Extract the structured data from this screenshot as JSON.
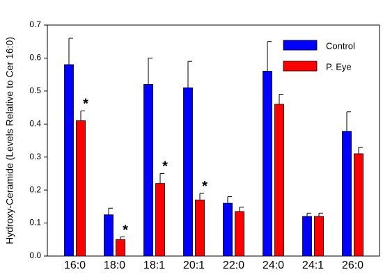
{
  "chart_data": {
    "type": "bar",
    "y_label": "Hydroxy-Ceramide (Levels Relative to Cer 16:0)",
    "categories": [
      "16:0",
      "18:0",
      "18:1",
      "20:1",
      "22:0",
      "24:0",
      "24:1",
      "26:0"
    ],
    "series": [
      {
        "name": "Control",
        "color": "#0000ff",
        "values": [
          0.58,
          0.125,
          0.52,
          0.51,
          0.16,
          0.56,
          0.12,
          0.378
        ],
        "errors": [
          0.08,
          0.02,
          0.08,
          0.08,
          0.02,
          0.09,
          0.01,
          0.059
        ]
      },
      {
        "name": "P. Eye",
        "color": "#ff0000",
        "values": [
          0.41,
          0.05,
          0.22,
          0.17,
          0.135,
          0.46,
          0.12,
          0.31
        ],
        "errors": [
          0.03,
          0.008,
          0.03,
          0.02,
          0.013,
          0.03,
          0.01,
          0.02
        ],
        "annotations": [
          "*",
          "*",
          "*",
          "*",
          null,
          null,
          null,
          null
        ]
      }
    ],
    "ylim": [
      0,
      0.7
    ],
    "yticks": [
      {
        "value": 0,
        "label": "0.0"
      },
      0.1,
      0.2,
      0.3,
      0.4,
      0.5,
      0.6,
      0.7
    ],
    "legend": "upper right"
  }
}
